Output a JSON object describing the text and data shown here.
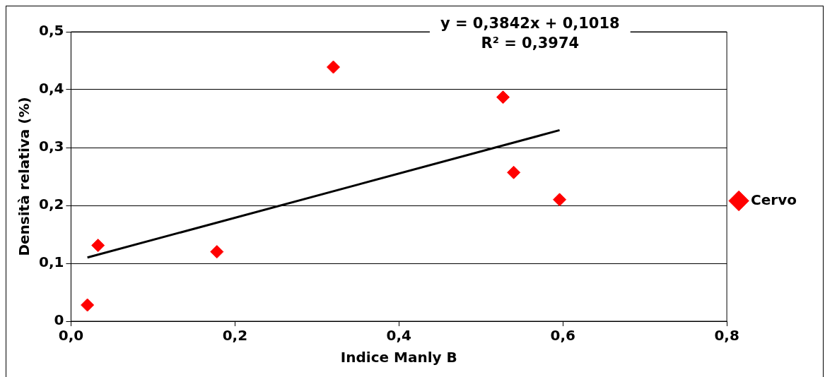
{
  "chart_data": {
    "type": "scatter",
    "xlabel": "Indice Manly B",
    "ylabel": "Densità relativa (%)",
    "annotations": [
      "y = 0,3842x + 0,1018",
      "R² = 0,3974"
    ],
    "xlim": [
      0,
      0.8
    ],
    "xticks": [
      {
        "value": 0,
        "label": "0,0"
      },
      {
        "value": 0.2,
        "label": "0,2"
      },
      {
        "value": 0.4,
        "label": "0,4"
      },
      {
        "value": 0.6,
        "label": "0,6"
      },
      {
        "value": 0.8,
        "label": "0,8"
      }
    ],
    "ylim": [
      0,
      0.5
    ],
    "yticks": [
      {
        "value": 0,
        "label": "0"
      },
      {
        "value": 0.1,
        "label": "0,1"
      },
      {
        "value": 0.2,
        "label": "0,2"
      },
      {
        "value": 0.3,
        "label": "0,3"
      },
      {
        "value": 0.4,
        "label": "0,4"
      },
      {
        "value": 0.5,
        "label": "0,5"
      }
    ],
    "grid": "y",
    "legend": "right",
    "marker": "diamond",
    "series": [
      {
        "name": "Cervo",
        "color": "#ff0000",
        "x": [
          0.02,
          0.033,
          0.178,
          0.32,
          0.527,
          0.54,
          0.596
        ],
        "values": [
          0.028,
          0.131,
          0.12,
          0.439,
          0.387,
          0.257,
          0.21
        ]
      },
      {
        "type": "line",
        "marker": "none",
        "color": "#000000",
        "line_style": "solid",
        "x": [
          0.02,
          0.596
        ],
        "values": [
          0.11,
          0.33
        ]
      }
    ]
  }
}
